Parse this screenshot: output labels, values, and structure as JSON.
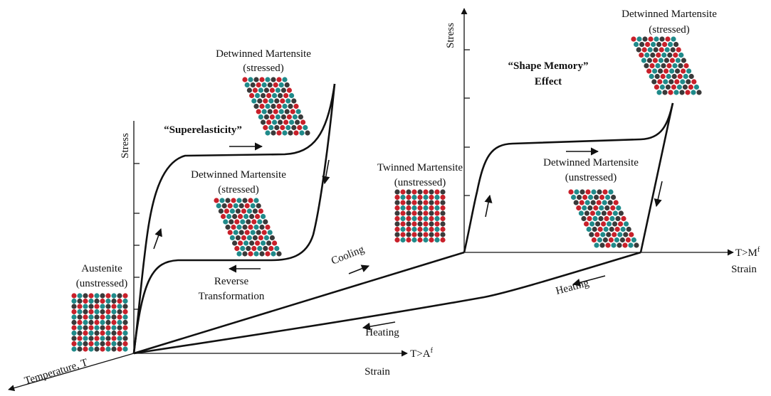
{
  "left": {
    "stress_axis": "Stress",
    "strain_axis": "Strain",
    "temperature_axis": "Temperature, T",
    "condition": {
      "text": "T>A",
      "sup": "f"
    },
    "title": "“Superelasticity”",
    "top_crystal": [
      "Detwinned Martensite",
      "(stressed)"
    ],
    "mid_crystal": [
      "Detwinned Martensite",
      "(stressed)"
    ],
    "austenite": [
      "Austenite",
      "(unstressed)"
    ],
    "reverse": [
      "Reverse",
      "Transformation"
    ]
  },
  "middle": {
    "cooling": "Cooling",
    "heating_lower": "Heating",
    "heating_right": "Heating"
  },
  "right": {
    "stress_axis": "Stress",
    "strain_axis": "Strain",
    "condition": {
      "text": "T>M",
      "sup": "f"
    },
    "title": [
      "“Shape Memory”",
      "Effect"
    ],
    "top_crystal": [
      "Detwinned Martensite",
      "(stressed)"
    ],
    "twinned": [
      "Twinned Martensite",
      "(unstressed)"
    ],
    "detwinned_unstressed": [
      "Detwinned Martensite",
      "(unstressed)"
    ]
  }
}
